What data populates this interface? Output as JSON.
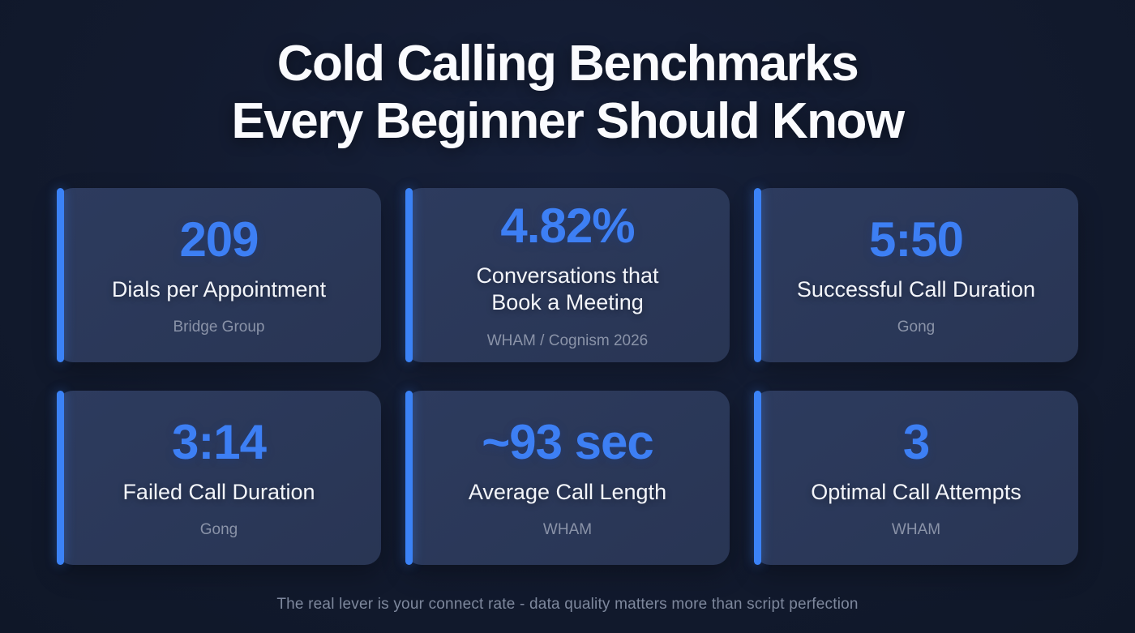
{
  "page": {
    "title_line1": "Cold Calling Benchmarks",
    "title_line2": "Every Beginner Should Know",
    "footer": "The real lever is your connect rate - data quality matters more than script perfection"
  },
  "colors": {
    "background": "#121a2e",
    "card": "#273350",
    "accent_blue": "#3b82f6",
    "value_blue": "#3d7ff4",
    "label_white": "#f3f5fa",
    "source_gray": "#8a93a8"
  },
  "cards": [
    {
      "value": "209",
      "label": "Dials per Appointment",
      "source": "Bridge Group"
    },
    {
      "value": "4.82%",
      "label": "Conversations that Book a Meeting",
      "source": "WHAM / Cognism 2026"
    },
    {
      "value": "5:50",
      "label": "Successful Call Duration",
      "source": "Gong"
    },
    {
      "value": "3:14",
      "label": "Failed Call Duration",
      "source": "Gong"
    },
    {
      "value": "~93 sec",
      "label": "Average Call Length",
      "source": "WHAM"
    },
    {
      "value": "3",
      "label": "Optimal Call Attempts",
      "source": "WHAM"
    }
  ],
  "chart_data": {
    "type": "table",
    "title": "Cold Calling Benchmarks Every Beginner Should Know",
    "columns": [
      "metric",
      "value",
      "source"
    ],
    "rows": [
      [
        "Dials per Appointment",
        "209",
        "Bridge Group"
      ],
      [
        "Conversations that Book a Meeting",
        "4.82%",
        "WHAM / Cognism 2026"
      ],
      [
        "Successful Call Duration",
        "5:50",
        "Gong"
      ],
      [
        "Failed Call Duration",
        "3:14",
        "Gong"
      ],
      [
        "Average Call Length",
        "~93 sec",
        "WHAM"
      ],
      [
        "Optimal Call Attempts",
        "3",
        "WHAM"
      ]
    ],
    "annotations": [
      "The real lever is your connect rate - data quality matters more than script perfection"
    ]
  }
}
